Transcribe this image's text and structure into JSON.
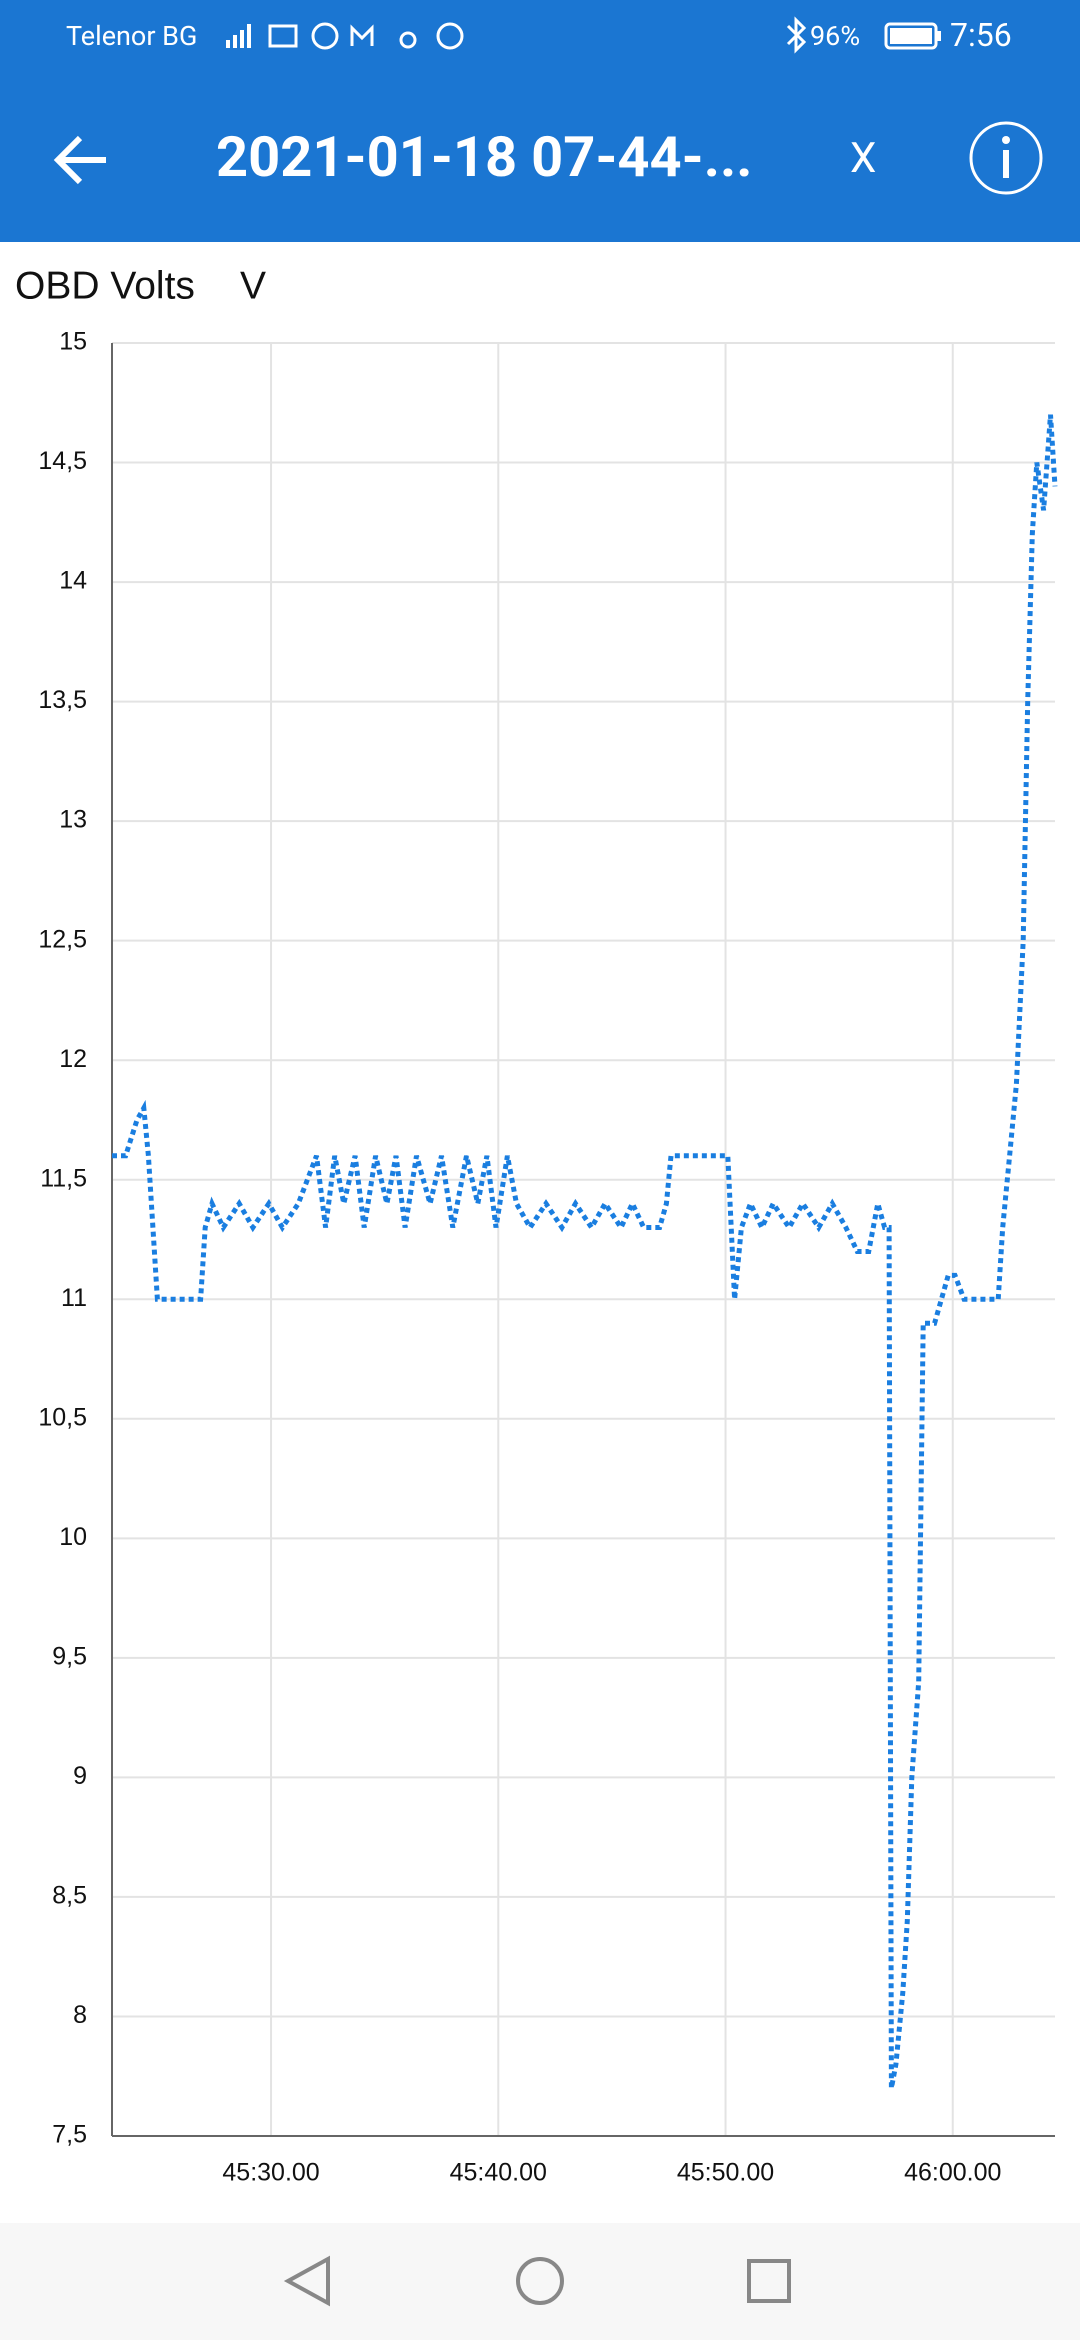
{
  "status_bar": {
    "carrier": "Telenor BG",
    "battery": "96%",
    "time": "7:56"
  },
  "app_bar": {
    "title": "2021-01-18 07-44-...",
    "close": "X"
  },
  "chart_data": {
    "type": "line",
    "title": "OBD Volts",
    "unit": "V",
    "color": "#1a7ee0",
    "grid": true,
    "xlim": [
      2723.0,
      2764.5
    ],
    "ylim": [
      7.5,
      15
    ],
    "xticks": [
      {
        "value": 2730,
        "label": "45:30.00"
      },
      {
        "value": 2740,
        "label": "45:40.00"
      },
      {
        "value": 2750,
        "label": "45:50.00"
      },
      {
        "value": 2760,
        "label": "46:00.00"
      }
    ],
    "yticks": [
      {
        "value": 7.5,
        "label": "7,5"
      },
      8,
      {
        "value": 8.5,
        "label": "8,5"
      },
      9,
      {
        "value": 9.5,
        "label": "9,5"
      },
      10,
      {
        "value": 10.5,
        "label": "10,5"
      },
      11,
      {
        "value": 11.5,
        "label": "11,5"
      },
      12,
      {
        "value": 12.5,
        "label": "12,5"
      },
      13,
      {
        "value": 13.5,
        "label": "13,5"
      },
      14,
      {
        "value": 14.5,
        "label": "14,5"
      },
      15
    ],
    "x": [
      2723.0,
      2723.6,
      2724.1,
      2724.4,
      2724.6,
      2725.0,
      2726.9,
      2727.1,
      2727.4,
      2727.9,
      2728.6,
      2729.2,
      2729.9,
      2730.5,
      2731.2,
      2732.0,
      2732.4,
      2732.8,
      2733.2,
      2733.7,
      2734.1,
      2734.6,
      2735.1,
      2735.5,
      2735.9,
      2736.4,
      2737.0,
      2737.5,
      2738.0,
      2738.6,
      2739.1,
      2739.5,
      2739.9,
      2740.4,
      2740.8,
      2741.4,
      2742.1,
      2742.8,
      2743.4,
      2744.1,
      2744.7,
      2745.4,
      2745.9,
      2746.4,
      2747.1,
      2747.4,
      2747.6,
      2750.1,
      2750.4,
      2750.7,
      2751.1,
      2751.6,
      2752.1,
      2752.8,
      2753.4,
      2754.1,
      2754.7,
      2755.3,
      2755.8,
      2756.3,
      2756.7,
      2757.0,
      2757.2,
      2757.3,
      2757.5,
      2757.8,
      2758.0,
      2758.2,
      2758.5,
      2758.7,
      2759.2,
      2759.5,
      2759.8,
      2760.1,
      2760.5,
      2762.0,
      2762.2,
      2762.5,
      2762.8,
      2763.1,
      2763.3,
      2763.5,
      2763.7,
      2764.0,
      2764.3,
      2764.5
    ],
    "values": [
      11.6,
      11.6,
      11.75,
      11.8,
      11.6,
      11.0,
      11.0,
      11.3,
      11.4,
      11.3,
      11.4,
      11.3,
      11.4,
      11.3,
      11.4,
      11.6,
      11.3,
      11.6,
      11.4,
      11.6,
      11.3,
      11.6,
      11.4,
      11.6,
      11.3,
      11.6,
      11.4,
      11.6,
      11.3,
      11.6,
      11.4,
      11.6,
      11.3,
      11.6,
      11.4,
      11.3,
      11.4,
      11.3,
      11.4,
      11.3,
      11.4,
      11.3,
      11.4,
      11.3,
      11.3,
      11.4,
      11.6,
      11.6,
      11.0,
      11.3,
      11.4,
      11.3,
      11.4,
      11.3,
      11.4,
      11.3,
      11.4,
      11.3,
      11.2,
      11.2,
      11.4,
      11.3,
      11.3,
      7.7,
      7.8,
      8.1,
      8.4,
      9.0,
      9.4,
      10.9,
      10.9,
      11.0,
      11.1,
      11.1,
      11.0,
      11.0,
      11.3,
      11.6,
      11.9,
      12.5,
      13.5,
      14.2,
      14.5,
      14.3,
      14.7,
      14.4
    ]
  }
}
